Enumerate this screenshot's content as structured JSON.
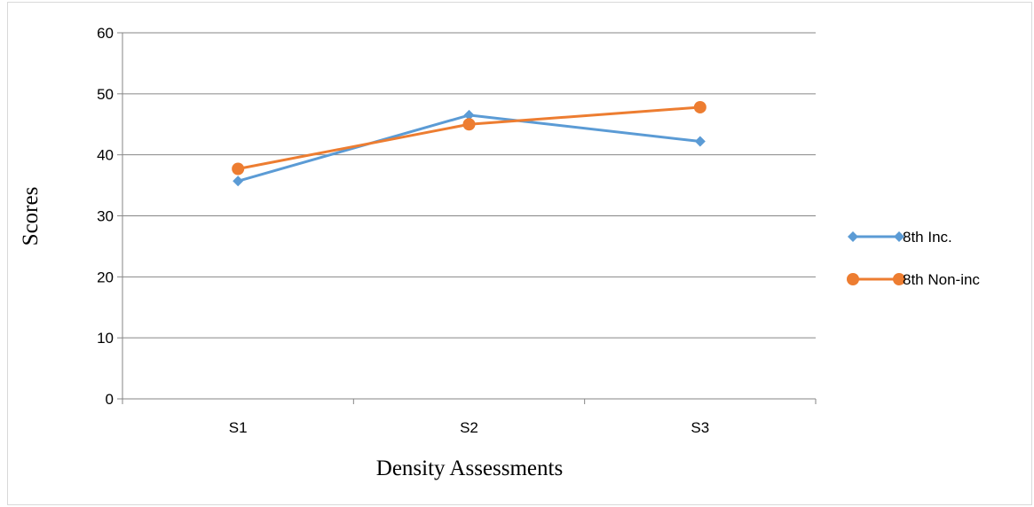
{
  "chart_data": {
    "type": "line",
    "title": "",
    "xlabel": "Density Assessments",
    "ylabel": "Scores",
    "categories": [
      "S1",
      "S2",
      "S3"
    ],
    "ylim": [
      0,
      60
    ],
    "yticks": [
      0,
      10,
      20,
      30,
      40,
      50,
      60
    ],
    "grid": true,
    "legend_position": "right",
    "series": [
      {
        "name": "8th Inc.",
        "values": [
          35.7,
          46.5,
          42.2
        ],
        "color": "#5B9BD5",
        "marker": "diamond"
      },
      {
        "name": "8th Non-inc",
        "values": [
          37.7,
          45.0,
          47.8
        ],
        "color": "#ED7D31",
        "marker": "circle"
      }
    ]
  }
}
